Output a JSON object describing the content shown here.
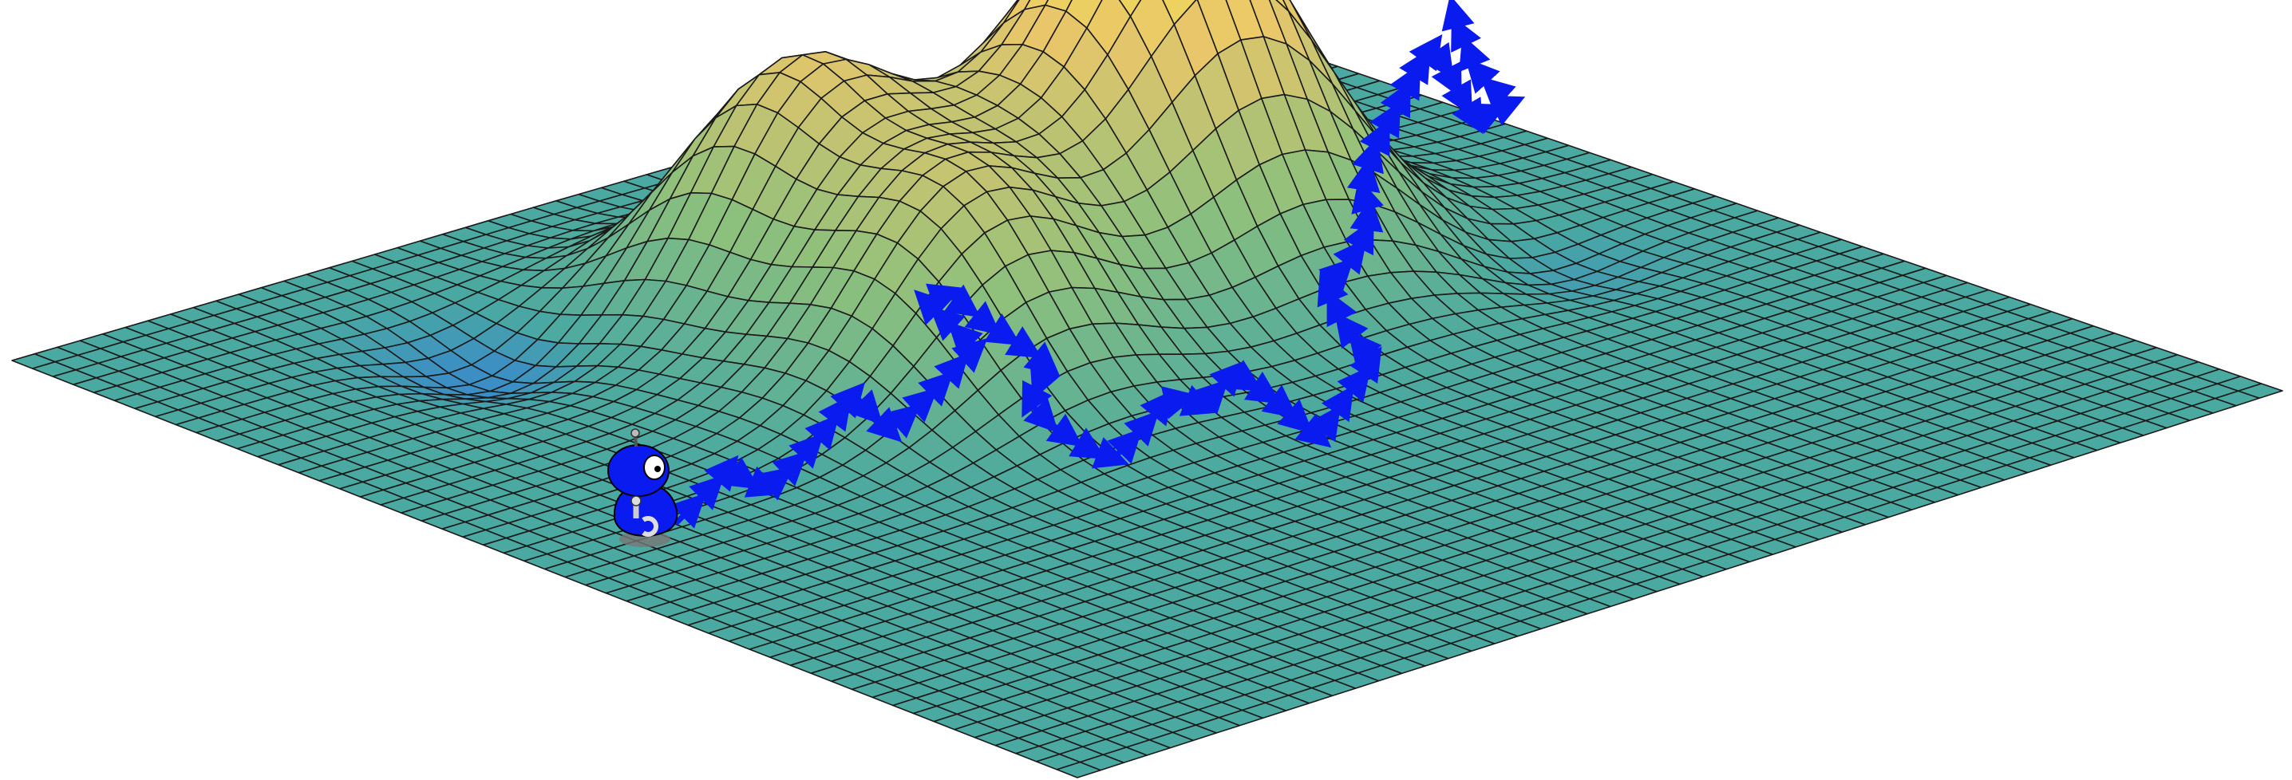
{
  "surface": {
    "colors": {
      "low": "#4aa9a1",
      "mid": "#8dc07c",
      "high": "#e9c66a",
      "peak": "#f6e84e",
      "valley": "#3c8fc4",
      "mesh_line": "#1a1a1a"
    }
  },
  "path": {
    "color": "#0a1bf0",
    "step_count": 44
  },
  "robot": {
    "body_color": "#0a1bf0",
    "eye_color": "#ffffff",
    "icon": "robot-icon"
  }
}
